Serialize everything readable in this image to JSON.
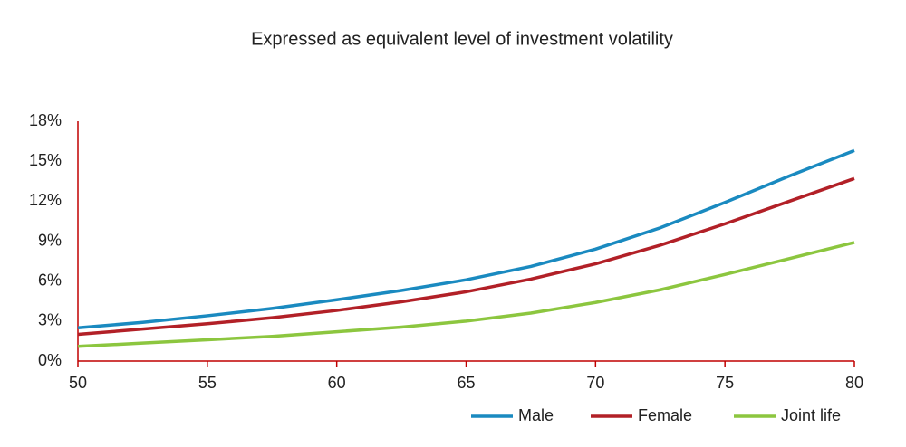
{
  "chart_data": {
    "type": "line",
    "title": "Expressed as equivalent level of investment volatility",
    "x": [
      50,
      52.5,
      55,
      57.5,
      60,
      62.5,
      65,
      67.5,
      70,
      72.5,
      75,
      77.5,
      80
    ],
    "series": [
      {
        "name": "Male",
        "color": "#1a8ac0",
        "values": [
          2.5,
          2.9,
          3.4,
          3.95,
          4.6,
          5.3,
          6.1,
          7.1,
          8.4,
          10.0,
          11.9,
          13.9,
          15.8
        ]
      },
      {
        "name": "Female",
        "color": "#b22027",
        "values": [
          2.0,
          2.4,
          2.8,
          3.25,
          3.8,
          4.45,
          5.2,
          6.15,
          7.3,
          8.7,
          10.3,
          12.0,
          13.7
        ]
      },
      {
        "name": "Joint life",
        "color": "#8cc63f",
        "values": [
          1.1,
          1.35,
          1.6,
          1.85,
          2.2,
          2.55,
          3.0,
          3.6,
          4.4,
          5.35,
          6.5,
          7.7,
          8.9
        ]
      }
    ],
    "xlim": [
      50,
      80
    ],
    "xticks": [
      50,
      55,
      60,
      65,
      70,
      75,
      80
    ],
    "ylim": [
      0,
      18
    ],
    "yticks": [
      {
        "value": 0,
        "label": "0%"
      },
      {
        "value": 3,
        "label": "3%"
      },
      {
        "value": 6,
        "label": "6%"
      },
      {
        "value": 9,
        "label": "9%"
      },
      {
        "value": 12,
        "label": "12%"
      },
      {
        "value": 15,
        "label": "15%"
      },
      {
        "value": 18,
        "label": "18%"
      }
    ],
    "axis_color": "#c00000"
  }
}
